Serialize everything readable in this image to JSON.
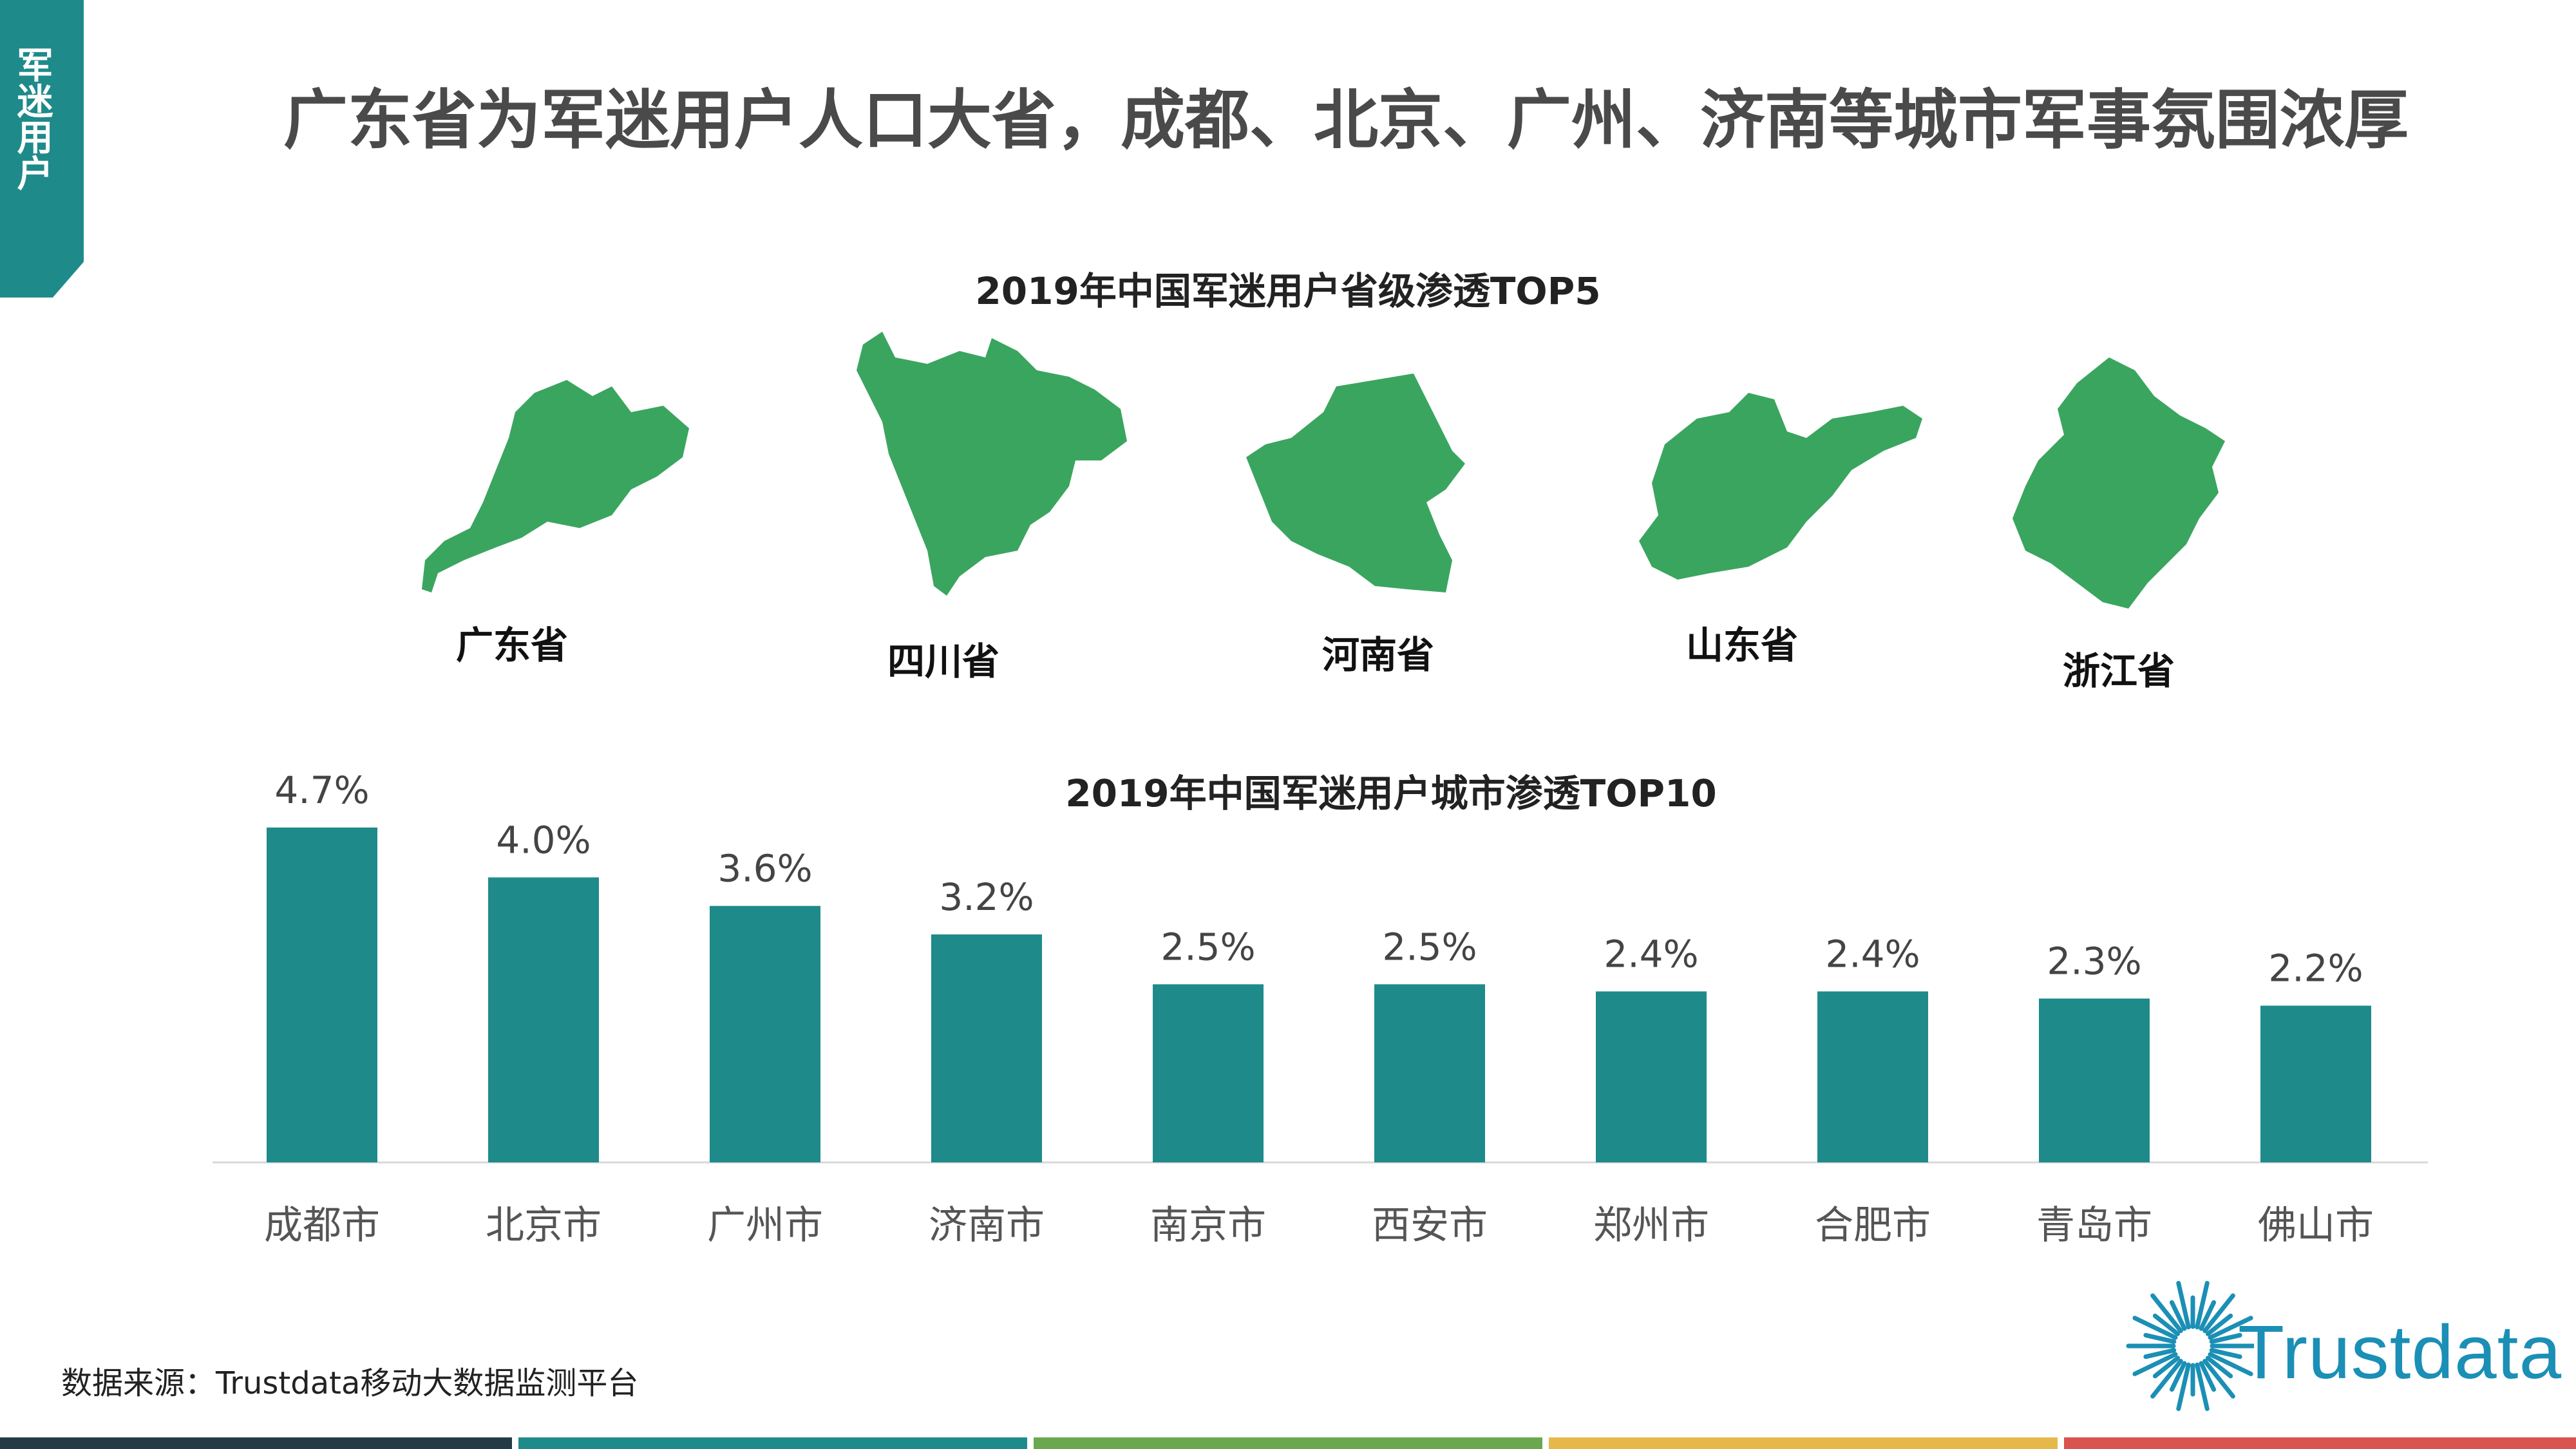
{
  "side_tab": {
    "label": "军迷用户"
  },
  "page_title": "广东省为军迷用户人口大省，成都、北京、广州、济南等城市军事氛围浓厚",
  "province_section": {
    "title": "2019年中国军迷用户省级渗透TOP5",
    "provinces": [
      "广东省",
      "四川省",
      "河南省",
      "山东省",
      "浙江省"
    ],
    "map_color": "#3aa55f"
  },
  "chart_data": {
    "type": "bar",
    "title": "2019年中国军迷用户城市渗透TOP10",
    "categories": [
      "成都市",
      "北京市",
      "广州市",
      "济南市",
      "南京市",
      "西安市",
      "郑州市",
      "合肥市",
      "青岛市",
      "佛山市"
    ],
    "values": [
      4.7,
      4.0,
      3.6,
      3.2,
      2.5,
      2.5,
      2.4,
      2.4,
      2.3,
      2.2
    ],
    "data_labels": [
      "4.7%",
      "4.0%",
      "3.6%",
      "3.2%",
      "2.5%",
      "2.5%",
      "2.4%",
      "2.4%",
      "2.3%",
      "2.2%"
    ],
    "unit": "%",
    "bar_color": "#1f8a8a",
    "ylim": [
      0,
      4.7
    ],
    "grid": false,
    "legend": "none"
  },
  "source": "数据来源：Trustdata移动大数据监测平台",
  "logo": {
    "text": "Trustdata",
    "color": "#1b8fb5"
  },
  "footer_colors": [
    "#243b47",
    "#1f8a8a",
    "#6aa84f",
    "#e6b84a",
    "#d9534f"
  ]
}
